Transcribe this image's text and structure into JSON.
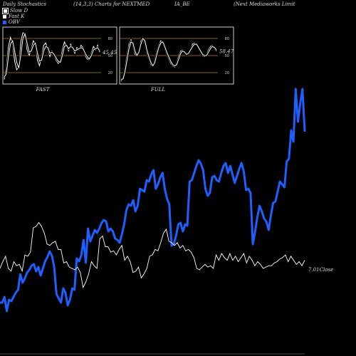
{
  "header": {
    "left": "Daily Stochastics",
    "mid": "(14,3,3) Charts for NEXTMED",
    "mid2": "IA_BE",
    "right": "(Next Mediaworks Limit"
  },
  "legend": [
    {
      "label": "Slow  D",
      "color": "#ffffff"
    },
    {
      "label": "Fast K",
      "color": "#ffffff"
    },
    {
      "label": "OBV",
      "color": "#1f5fff"
    }
  ],
  "colors": {
    "background": "#000000",
    "stoch_line": "#ffffff",
    "level_line": "#b8860b",
    "obv": "#1f5fff",
    "price": "#ffffff"
  },
  "chart_data": [
    {
      "type": "line",
      "panel": "FAST",
      "title": "FAST",
      "yticks": [
        80,
        50,
        20
      ],
      "ylim": [
        0,
        100
      ],
      "last_value_label": "45.45",
      "series": [
        {
          "values": [
            8,
            30,
            65,
            82,
            70,
            40,
            25,
            30,
            75,
            90,
            88,
            60,
            50,
            62,
            76,
            70,
            42,
            32,
            48,
            68,
            72,
            60,
            48,
            58,
            50,
            42,
            36,
            40,
            60,
            74,
            66,
            58,
            70,
            62,
            54,
            64,
            60,
            68,
            64,
            50,
            44,
            42,
            55,
            66,
            60,
            68,
            56
          ]
        },
        {
          "values": [
            12,
            18,
            48,
            70,
            76,
            58,
            38,
            28,
            52,
            80,
            88,
            72,
            56,
            58,
            68,
            72,
            54,
            40,
            42,
            58,
            66,
            64,
            54,
            56,
            52,
            46,
            40,
            38,
            50,
            66,
            68,
            62,
            66,
            64,
            58,
            60,
            62,
            64,
            62,
            54,
            48,
            44,
            50,
            60,
            62,
            64,
            58
          ]
        }
      ]
    },
    {
      "type": "line",
      "panel": "FULL",
      "title": "FULL",
      "yticks": [
        80,
        50,
        20
      ],
      "ylim": [
        0,
        100
      ],
      "last_value_label": "58.47",
      "series": [
        {
          "values": [
            5,
            10,
            30,
            52,
            70,
            78,
            66,
            52,
            48,
            60,
            76,
            82,
            70,
            54,
            44,
            34,
            30,
            44,
            58,
            68,
            76,
            72,
            62,
            52,
            44,
            36,
            32,
            30,
            38,
            50,
            58,
            60,
            54,
            50,
            56,
            62,
            70,
            72,
            68,
            62,
            56,
            50,
            48,
            52,
            60,
            66,
            68,
            62,
            58
          ]
        },
        {
          "values": [
            8,
            9,
            22,
            42,
            62,
            74,
            72,
            58,
            50,
            56,
            70,
            80,
            76,
            60,
            48,
            38,
            32,
            38,
            52,
            64,
            72,
            74,
            66,
            56,
            48,
            40,
            34,
            32,
            34,
            44,
            54,
            58,
            56,
            52,
            54,
            60,
            66,
            70,
            70,
            64,
            58,
            52,
            50,
            50,
            56,
            62,
            66,
            64,
            60
          ]
        }
      ]
    },
    {
      "type": "line",
      "panel": "OBV and Price",
      "last_value_label": "7.01Close",
      "series": [
        {
          "name": "OBV",
          "values": [
            40,
            40,
            48,
            28,
            44,
            42,
            48,
            54,
            58,
            80,
            68,
            74,
            82,
            86,
            92,
            94,
            84,
            90,
            78,
            88,
            98,
            104,
            112,
            106,
            90,
            52,
            46,
            40,
            60,
            54,
            36,
            44,
            60,
            58,
            102,
            98,
            106,
            128,
            96,
            144,
            126,
            134,
            142,
            138,
            144,
            152,
            156,
            154,
            140,
            144,
            140,
            130,
            128,
            124,
            136,
            150,
            170,
            178,
            176,
            184,
            168,
            176,
            200,
            198,
            196,
            212,
            210,
            220,
            226,
            200,
            206,
            216,
            222,
            200,
            186,
            178,
            120,
            122,
            134,
            150,
            152,
            140,
            150,
            148,
            210,
            212,
            222,
            232,
            240,
            235,
            226,
            200,
            190,
            194,
            216,
            218,
            212,
            210,
            222,
            232,
            236,
            222,
            232,
            220,
            208,
            218,
            228,
            236,
            224,
            198,
            200,
            194,
            122,
            140,
            160,
            176,
            168,
            158,
            154,
            142,
            162,
            180,
            182,
            196,
            210,
            206,
            202,
            238,
            242,
            282,
            266,
            340,
            294,
            320,
            340,
            280
          ]
        },
        {
          "name": "Price",
          "values": [
            100,
            110,
            118,
            100,
            96,
            110,
            104,
            106,
            96,
            120,
            118,
            124,
            160,
            162,
            168,
            162,
            152,
            136,
            134,
            138,
            140,
            128,
            128,
            108,
            110,
            102,
            100,
            98,
            102,
            94,
            72,
            80,
            92,
            110,
            104,
            100,
            144,
            148,
            132,
            132,
            124,
            126,
            120,
            128,
            134,
            112,
            118,
            110,
            94,
            96,
            102,
            86,
            92,
            100,
            118,
            120,
            128,
            126,
            138,
            152,
            158,
            140,
            138,
            134,
            138,
            130,
            134,
            126,
            128,
            124,
            116,
            100,
            98,
            102,
            106,
            102,
            104,
            100,
            120,
            112,
            122,
            116,
            112,
            122,
            112,
            118,
            110,
            116,
            122,
            108,
            118,
            112,
            104,
            110,
            106,
            100,
            102,
            104,
            104,
            108,
            110,
            114,
            116,
            120,
            110,
            118,
            112,
            106,
            110,
            104,
            112
          ]
        }
      ]
    }
  ]
}
